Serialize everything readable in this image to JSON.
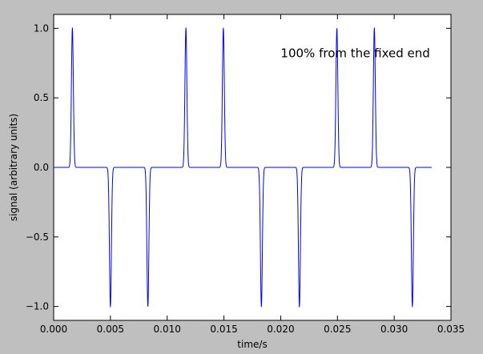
{
  "chart_data": {
    "type": "line",
    "title": "",
    "xlabel": "time/s",
    "ylabel": "signal (arbitrary units)",
    "xlim": [
      0.0,
      0.035
    ],
    "ylim": [
      -1.1,
      1.1
    ],
    "xticks": [
      0.0,
      0.005,
      0.01,
      0.015,
      0.02,
      0.025,
      0.03,
      0.035
    ],
    "xtick_labels": [
      "0.000",
      "0.005",
      "0.010",
      "0.015",
      "0.020",
      "0.025",
      "0.030",
      "0.035"
    ],
    "yticks": [
      -1.0,
      -0.5,
      0.0,
      0.5,
      1.0
    ],
    "ytick_labels": [
      "−1.0",
      "−0.5",
      "0.0",
      "0.5",
      "1.0"
    ],
    "grid": false,
    "annotation": {
      "text": "100% from the fixed end",
      "x": 0.02,
      "y": 0.82
    },
    "series": [
      {
        "color": "#0000ff",
        "x_start": 0.0,
        "x_end": 0.0333,
        "baseline": 0.0,
        "pulse_width": 0.00018,
        "pulses": [
          {
            "t": 0.00165,
            "amp": 1.0
          },
          {
            "t": 0.005,
            "amp": -1.0
          },
          {
            "t": 0.0083,
            "amp": -1.0
          },
          {
            "t": 0.01165,
            "amp": 1.0
          },
          {
            "t": 0.01495,
            "amp": 1.0
          },
          {
            "t": 0.0183,
            "amp": -1.0
          },
          {
            "t": 0.02165,
            "amp": -1.0
          },
          {
            "t": 0.02495,
            "amp": 1.0
          },
          {
            "t": 0.02825,
            "amp": 1.0
          },
          {
            "t": 0.0316,
            "amp": -1.0
          }
        ]
      }
    ]
  },
  "colors": {
    "figure_bg": "#bfbfbf",
    "axes_bg": "#ffffff",
    "line": "#0000ff"
  }
}
